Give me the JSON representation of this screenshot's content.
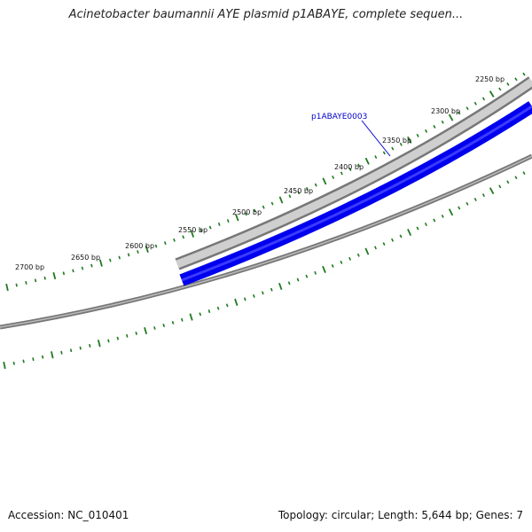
{
  "title": "Acinetobacter baumannii AYE plasmid p1ABAYE, complete sequen...",
  "footer": {
    "accession": "Accession: NC_010401",
    "info": "Topology: circular; Length: 5,644 bp; Genes: 7"
  },
  "ticks": [
    "2250 bp",
    "2300 bp",
    "2350 bp",
    "2400 bp",
    "2450 bp",
    "2500 bp",
    "2550 bp",
    "2600 bp",
    "2650 bp",
    "2700 bp"
  ],
  "gene": {
    "label": "p1ABAYE0003"
  },
  "colors": {
    "tick": "#1e7a1e",
    "gene": "#0000ee",
    "backbone": "#808080"
  }
}
